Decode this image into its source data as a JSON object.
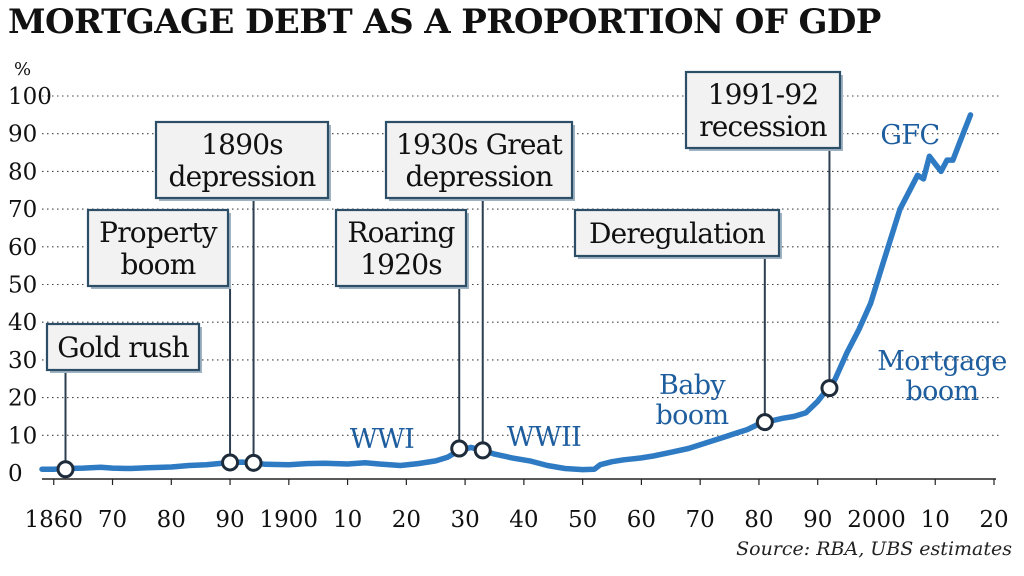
{
  "chart_data": {
    "type": "line",
    "title": "MORTGAGE DEBT AS A PROPORTION OF GDP",
    "ylabel": "%",
    "xlabel": "",
    "source": "Source: RBA, UBS estimates",
    "xlim": [
      1858,
      2020
    ],
    "ylim": [
      0,
      100
    ],
    "y_ticks": [
      0,
      10,
      20,
      30,
      40,
      50,
      60,
      70,
      80,
      90,
      100
    ],
    "x_ticks": [
      {
        "x": 1860,
        "label": "1860"
      },
      {
        "x": 1870,
        "label": "70"
      },
      {
        "x": 1880,
        "label": "80"
      },
      {
        "x": 1890,
        "label": "90"
      },
      {
        "x": 1900,
        "label": "1900"
      },
      {
        "x": 1910,
        "label": "10"
      },
      {
        "x": 1920,
        "label": "20"
      },
      {
        "x": 1930,
        "label": "30"
      },
      {
        "x": 1940,
        "label": "40"
      },
      {
        "x": 1950,
        "label": "50"
      },
      {
        "x": 1960,
        "label": "60"
      },
      {
        "x": 1970,
        "label": "70"
      },
      {
        "x": 1980,
        "label": "80"
      },
      {
        "x": 1990,
        "label": "90"
      },
      {
        "x": 2000,
        "label": "2000"
      },
      {
        "x": 2010,
        "label": "10"
      },
      {
        "x": 2020,
        "label": "20"
      }
    ],
    "grid": "horizontal-dotted",
    "line_color": "#2e7bc4",
    "series": [
      {
        "values": [
          [
            1858,
            1.0
          ],
          [
            1860,
            1.0
          ],
          [
            1862,
            1.2
          ],
          [
            1865,
            1.3
          ],
          [
            1868,
            1.5
          ],
          [
            1870,
            1.3
          ],
          [
            1873,
            1.2
          ],
          [
            1876,
            1.4
          ],
          [
            1880,
            1.6
          ],
          [
            1883,
            2.0
          ],
          [
            1886,
            2.2
          ],
          [
            1888,
            2.5
          ],
          [
            1890,
            2.8
          ],
          [
            1892,
            2.9
          ],
          [
            1894,
            2.7
          ],
          [
            1896,
            2.3
          ],
          [
            1900,
            2.2
          ],
          [
            1903,
            2.5
          ],
          [
            1906,
            2.6
          ],
          [
            1910,
            2.4
          ],
          [
            1913,
            2.7
          ],
          [
            1916,
            2.3
          ],
          [
            1919,
            2.0
          ],
          [
            1922,
            2.5
          ],
          [
            1925,
            3.2
          ],
          [
            1927,
            4.2
          ],
          [
            1929,
            6.0
          ],
          [
            1931,
            6.8
          ],
          [
            1933,
            6.0
          ],
          [
            1935,
            5.0
          ],
          [
            1938,
            4.0
          ],
          [
            1941,
            3.2
          ],
          [
            1944,
            2.0
          ],
          [
            1947,
            1.2
          ],
          [
            1950,
            0.9
          ],
          [
            1952,
            1.0
          ],
          [
            1953,
            2.2
          ],
          [
            1955,
            3.0
          ],
          [
            1957,
            3.5
          ],
          [
            1960,
            4.0
          ],
          [
            1962,
            4.5
          ],
          [
            1965,
            5.5
          ],
          [
            1968,
            6.5
          ],
          [
            1970,
            7.5
          ],
          [
            1972,
            8.5
          ],
          [
            1974,
            9.5
          ],
          [
            1976,
            10.5
          ],
          [
            1978,
            11.5
          ],
          [
            1980,
            13.0
          ],
          [
            1982,
            13.8
          ],
          [
            1984,
            14.5
          ],
          [
            1986,
            15.0
          ],
          [
            1988,
            16.0
          ],
          [
            1990,
            19.0
          ],
          [
            1991,
            21.0
          ],
          [
            1992,
            22.5
          ],
          [
            1993,
            25.0
          ],
          [
            1995,
            32.0
          ],
          [
            1997,
            38.0
          ],
          [
            1999,
            45.0
          ],
          [
            2001,
            55.0
          ],
          [
            2003,
            65.0
          ],
          [
            2004,
            70.0
          ],
          [
            2005,
            73.0
          ],
          [
            2007,
            79.0
          ],
          [
            2008,
            78.0
          ],
          [
            2009,
            84.0
          ],
          [
            2010,
            82.0
          ],
          [
            2011,
            80.0
          ],
          [
            2012,
            83.0
          ],
          [
            2013,
            83.0
          ],
          [
            2014,
            87.0
          ],
          [
            2015,
            91.0
          ],
          [
            2016,
            95.0
          ]
        ]
      }
    ],
    "markers": [
      {
        "x": 1862,
        "y": 1.0
      },
      {
        "x": 1890,
        "y": 2.8
      },
      {
        "x": 1894,
        "y": 2.7
      },
      {
        "x": 1929,
        "y": 6.5
      },
      {
        "x": 1933,
        "y": 6.0
      },
      {
        "x": 1981,
        "y": 13.5
      },
      {
        "x": 1992,
        "y": 22.5
      }
    ],
    "callouts": [
      {
        "lines": [
          "Gold rush"
        ],
        "x": 1862
      },
      {
        "lines": [
          "Property",
          "boom"
        ],
        "x": 1890
      },
      {
        "lines": [
          "1890s",
          "depression"
        ],
        "x": 1894
      },
      {
        "lines": [
          "Roaring",
          "1920s"
        ],
        "x": 1929
      },
      {
        "lines": [
          "1930s Great",
          "depression"
        ],
        "x": 1933
      },
      {
        "lines": [
          "Deregulation"
        ],
        "x": 1981
      },
      {
        "lines": [
          "1991-92",
          "recession"
        ],
        "x": 1992
      }
    ],
    "annotations": [
      {
        "lines": [
          "WWI"
        ]
      },
      {
        "lines": [
          "WWII"
        ]
      },
      {
        "lines": [
          "Baby",
          "boom"
        ]
      },
      {
        "lines": [
          "GFC"
        ]
      },
      {
        "lines": [
          "Mortgage",
          "boom"
        ]
      }
    ]
  }
}
